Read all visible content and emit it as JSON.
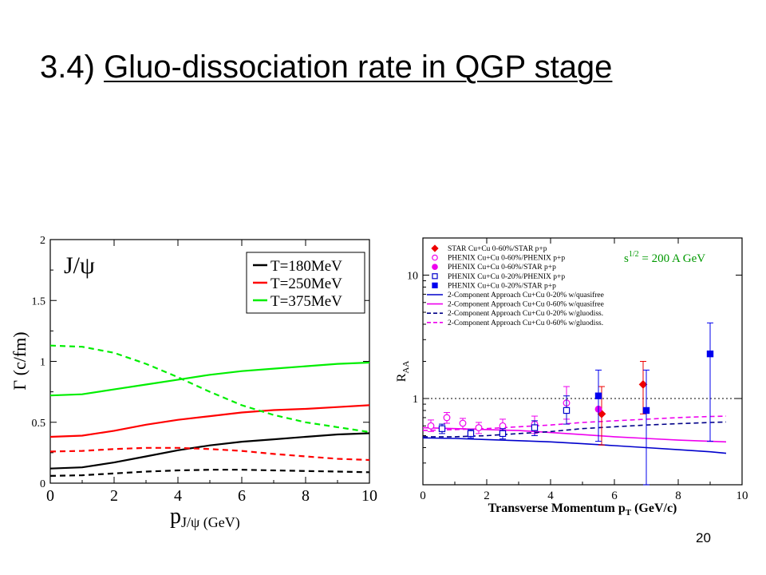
{
  "slide": {
    "title_prefix": "3.4)",
    "title_underlined": "Gluo-dissociation rate in QGP stage",
    "page_number": "20"
  },
  "chart_data": [
    {
      "type": "line",
      "title": "",
      "annotation": "J/ψ",
      "xlabel": "p",
      "xlabel_sub": "J/ψ",
      "xlabel_unit": "(GeV)",
      "ylabel": "Γ (c/fm)",
      "xlim": [
        0,
        10
      ],
      "ylim": [
        0,
        2
      ],
      "x_ticks": [
        "0",
        "2",
        "4",
        "6",
        "8",
        "10"
      ],
      "y_ticks": [
        "0",
        "0.5",
        "1",
        "1.5",
        "2"
      ],
      "legend_position": "top-right",
      "legend": [
        {
          "label": "T=180MeV",
          "color": "#000000"
        },
        {
          "label": "T=250MeV",
          "color": "#ff0000"
        },
        {
          "label": "T=375MeV",
          "color": "#00ee00"
        }
      ],
      "series": [
        {
          "name": "T=180MeV",
          "color": "#000000",
          "dash": false,
          "x": [
            0,
            1,
            2,
            3,
            4,
            5,
            6,
            7,
            8,
            9,
            10
          ],
          "y": [
            0.12,
            0.13,
            0.17,
            0.22,
            0.27,
            0.31,
            0.34,
            0.36,
            0.38,
            0.4,
            0.41
          ]
        },
        {
          "color": "#000000",
          "dash": true,
          "x": [
            0,
            1,
            2,
            3,
            4,
            5,
            6,
            7,
            8,
            9,
            10
          ],
          "y": [
            0.06,
            0.065,
            0.08,
            0.095,
            0.105,
            0.11,
            0.11,
            0.105,
            0.1,
            0.095,
            0.09
          ]
        },
        {
          "name": "T=250MeV",
          "color": "#ff0000",
          "dash": false,
          "x": [
            0,
            1,
            2,
            3,
            4,
            5,
            6,
            7,
            8,
            9,
            10
          ],
          "y": [
            0.38,
            0.39,
            0.43,
            0.48,
            0.52,
            0.55,
            0.58,
            0.6,
            0.61,
            0.625,
            0.64
          ]
        },
        {
          "color": "#ff0000",
          "dash": true,
          "x": [
            0,
            1,
            2,
            3,
            4,
            5,
            6,
            7,
            8,
            9,
            10
          ],
          "y": [
            0.26,
            0.265,
            0.28,
            0.29,
            0.29,
            0.28,
            0.265,
            0.24,
            0.22,
            0.2,
            0.19
          ]
        },
        {
          "name": "T=375MeV",
          "color": "#00ee00",
          "dash": false,
          "x": [
            0,
            1,
            2,
            3,
            4,
            5,
            6,
            7,
            8,
            9,
            10
          ],
          "y": [
            0.72,
            0.73,
            0.77,
            0.81,
            0.85,
            0.89,
            0.92,
            0.94,
            0.96,
            0.98,
            0.99
          ]
        },
        {
          "color": "#00ee00",
          "dash": true,
          "x": [
            0,
            1,
            2,
            3,
            4,
            5,
            6,
            7,
            8,
            9,
            10
          ],
          "y": [
            1.13,
            1.12,
            1.07,
            0.98,
            0.87,
            0.75,
            0.64,
            0.56,
            0.5,
            0.46,
            0.42
          ]
        }
      ]
    },
    {
      "type": "scatter",
      "title": "",
      "xlabel": "Transverse Momentum p",
      "xlabel_sub": "T",
      "xlabel_unit": "(GeV/c)",
      "ylabel": "R",
      "ylabel_sub": "AA",
      "xlim": [
        0,
        10
      ],
      "ylim": [
        0.2,
        20
      ],
      "y_scale": "log",
      "x_ticks": [
        "0",
        "2",
        "4",
        "6",
        "8",
        "10"
      ],
      "y_ticks": [
        {
          "value": 1,
          "label": "1"
        },
        {
          "value": 10,
          "label": "10"
        }
      ],
      "reference_line": {
        "y": 1,
        "style": "dotted"
      },
      "annotation": {
        "label": "s",
        "sup": "1/2",
        "rest": "= 200 A GeV",
        "color": "#009900"
      },
      "legend_position": "top-left",
      "legend": [
        {
          "label": "STAR     Cu+Cu 0-60%/STAR p+p",
          "marker": "diamond",
          "color": "#ee0000",
          "filled": true
        },
        {
          "label": "PHENIX Cu+Cu 0-60%/PHENIX p+p",
          "marker": "circle",
          "color": "#ee00ee",
          "filled": false
        },
        {
          "label": "PHENIX Cu+Cu 0-60%/STAR p+p",
          "marker": "circle",
          "color": "#ee00ee",
          "filled": true
        },
        {
          "label": "PHENIX Cu+Cu 0-20%/PHENIX p+p",
          "marker": "square",
          "color": "#0000cc",
          "filled": false
        },
        {
          "label": "PHENIX Cu+Cu 0-20%/STAR p+p",
          "marker": "square",
          "color": "#0000ee",
          "filled": true
        },
        {
          "label": "2-Component Approach Cu+Cu 0-20% w/quasifree",
          "line": "solid",
          "color": "#0000cc"
        },
        {
          "label": "2-Component Approach Cu+Cu 0-60% w/quasifree",
          "line": "solid",
          "color": "#ee00ee"
        },
        {
          "label": "2-Component Approach Cu+Cu 0-20% w/gluodiss.",
          "line": "dashed",
          "color": "#000088"
        },
        {
          "label": "2-Component Approach Cu+Cu 0-60% w/gluodiss.",
          "line": "dashed",
          "color": "#ee00ee"
        }
      ],
      "points": [
        {
          "set": 0,
          "x": 5.6,
          "y": 0.75,
          "lo": 0.42,
          "hi": 1.25
        },
        {
          "set": 0,
          "x": 6.9,
          "y": 1.3,
          "lo": 0.75,
          "hi": 2.0
        },
        {
          "set": 1,
          "x": 0.25,
          "y": 0.6,
          "lo": 0.54,
          "hi": 0.67
        },
        {
          "set": 1,
          "x": 0.75,
          "y": 0.7,
          "lo": 0.63,
          "hi": 0.77
        },
        {
          "set": 1,
          "x": 1.25,
          "y": 0.63,
          "lo": 0.57,
          "hi": 0.69
        },
        {
          "set": 1,
          "x": 1.75,
          "y": 0.58,
          "lo": 0.52,
          "hi": 0.64
        },
        {
          "set": 1,
          "x": 2.5,
          "y": 0.6,
          "lo": 0.52,
          "hi": 0.68
        },
        {
          "set": 1,
          "x": 3.5,
          "y": 0.62,
          "lo": 0.52,
          "hi": 0.72
        },
        {
          "set": 1,
          "x": 4.5,
          "y": 0.92,
          "lo": 0.68,
          "hi": 1.25
        },
        {
          "set": 2,
          "x": 5.5,
          "y": 0.82,
          "lo": 0.82,
          "hi": 0.82
        },
        {
          "set": 3,
          "x": 0.6,
          "y": 0.57,
          "lo": 0.52,
          "hi": 0.62
        },
        {
          "set": 3,
          "x": 1.5,
          "y": 0.52,
          "lo": 0.48,
          "hi": 0.56
        },
        {
          "set": 3,
          "x": 2.5,
          "y": 0.52,
          "lo": 0.47,
          "hi": 0.57
        },
        {
          "set": 3,
          "x": 3.5,
          "y": 0.58,
          "lo": 0.5,
          "hi": 0.66
        },
        {
          "set": 3,
          "x": 4.5,
          "y": 0.8,
          "lo": 0.62,
          "hi": 1.05
        },
        {
          "set": 4,
          "x": 5.5,
          "y": 1.05,
          "lo": 0.45,
          "hi": 1.7
        },
        {
          "set": 4,
          "x": 7.0,
          "y": 0.8,
          "lo": 0.2,
          "hi": 1.7
        },
        {
          "set": 4,
          "x": 9.0,
          "y": 2.3,
          "lo": 0.45,
          "hi": 4.1
        }
      ],
      "curves": [
        {
          "set": 5,
          "x": [
            0,
            1,
            2,
            3,
            4,
            5,
            6,
            7,
            8,
            9,
            9.5
          ],
          "y": [
            0.48,
            0.475,
            0.465,
            0.455,
            0.445,
            0.43,
            0.415,
            0.4,
            0.385,
            0.37,
            0.36
          ]
        },
        {
          "set": 6,
          "x": [
            0,
            1,
            2,
            3,
            4,
            5,
            6,
            7,
            8,
            9,
            9.5
          ],
          "y": [
            0.58,
            0.57,
            0.56,
            0.55,
            0.53,
            0.51,
            0.49,
            0.475,
            0.46,
            0.45,
            0.445
          ]
        },
        {
          "set": 7,
          "x": [
            0,
            1,
            2,
            3,
            4,
            5,
            6,
            7,
            8,
            9,
            9.5
          ],
          "y": [
            0.49,
            0.49,
            0.5,
            0.52,
            0.54,
            0.57,
            0.59,
            0.61,
            0.625,
            0.64,
            0.645
          ]
        },
        {
          "set": 8,
          "x": [
            0,
            1,
            2,
            3,
            4,
            5,
            6,
            7,
            8,
            9,
            9.5
          ],
          "y": [
            0.55,
            0.56,
            0.57,
            0.59,
            0.61,
            0.64,
            0.66,
            0.68,
            0.7,
            0.715,
            0.72
          ]
        }
      ]
    }
  ]
}
